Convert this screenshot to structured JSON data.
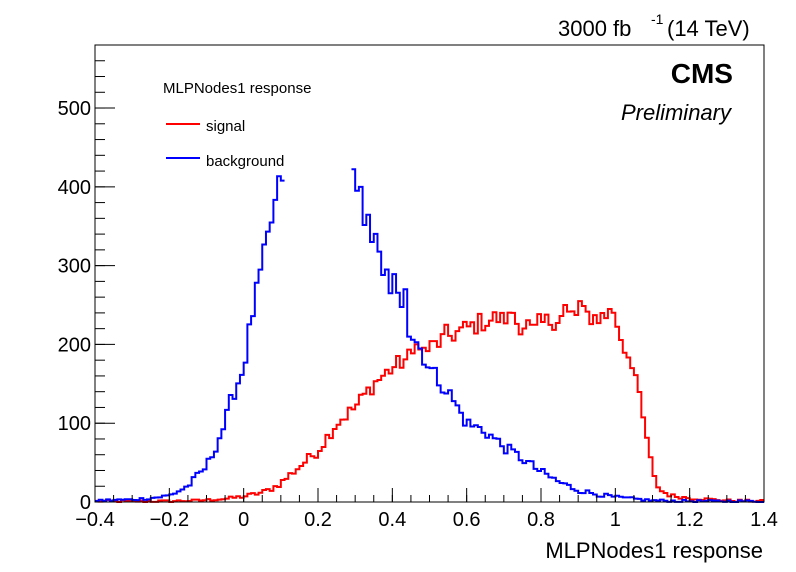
{
  "header": {
    "lumi_label": "3000 fb",
    "lumi_exponent": "-1",
    "energy_label": "(14 TeV)"
  },
  "cms": {
    "label": "CMS",
    "sublabel": "Preliminary"
  },
  "chart_data": {
    "type": "line",
    "title": "",
    "xlabel": "MLPNodes1 response",
    "ylabel": "",
    "xlim": [
      -0.4,
      1.4
    ],
    "ylim": [
      0,
      580
    ],
    "xticks": [
      -0.4,
      -0.2,
      0,
      0.2,
      0.4,
      0.6,
      0.8,
      1,
      1.2,
      1.4
    ],
    "xtick_labels": [
      "−0.4",
      "−0.2",
      "0",
      "0.2",
      "0.4",
      "0.6",
      "0.8",
      "1",
      "1.2",
      "1.4"
    ],
    "yticks": [
      0,
      100,
      200,
      300,
      400,
      500
    ],
    "ytick_labels": [
      "0",
      "100",
      "200",
      "300",
      "400",
      "500"
    ],
    "legend_title": "MLPNodes1 response",
    "legend_position": "top-left",
    "bin_edges_range": [
      -0.4,
      1.4
    ],
    "bin_count": 180,
    "series": [
      {
        "name": "signal",
        "color": "#ff0000",
        "style": "step",
        "points": [
          [
            -0.4,
            1
          ],
          [
            -0.2,
            1
          ],
          [
            -0.12,
            2
          ],
          [
            -0.05,
            4
          ],
          [
            0.0,
            7
          ],
          [
            0.05,
            12
          ],
          [
            0.08,
            18
          ],
          [
            0.1,
            24
          ],
          [
            0.15,
            45
          ],
          [
            0.2,
            65
          ],
          [
            0.25,
            100
          ],
          [
            0.3,
            120
          ],
          [
            0.35,
            150
          ],
          [
            0.4,
            170
          ],
          [
            0.45,
            185
          ],
          [
            0.5,
            195
          ],
          [
            0.55,
            210
          ],
          [
            0.6,
            220
          ],
          [
            0.65,
            230
          ],
          [
            0.7,
            235
          ],
          [
            0.75,
            225
          ],
          [
            0.8,
            225
          ],
          [
            0.85,
            235
          ],
          [
            0.9,
            238
          ],
          [
            0.95,
            235
          ],
          [
            1.0,
            235
          ],
          [
            1.02,
            200
          ],
          [
            1.05,
            175
          ],
          [
            1.07,
            115
          ],
          [
            1.09,
            70
          ],
          [
            1.1,
            35
          ],
          [
            1.12,
            15
          ],
          [
            1.15,
            8
          ],
          [
            1.2,
            5
          ],
          [
            1.3,
            2
          ],
          [
            1.4,
            1
          ]
        ],
        "spikes": [
          [
            0.465,
            200
          ],
          [
            0.545,
            225
          ],
          [
            0.695,
            240
          ],
          [
            0.725,
            240
          ],
          [
            0.78,
            225
          ],
          [
            0.865,
            250
          ],
          [
            0.905,
            255
          ],
          [
            0.985,
            245
          ]
        ]
      },
      {
        "name": "background",
        "color": "#0000ff",
        "style": "step",
        "points": [
          [
            -0.4,
            2
          ],
          [
            -0.3,
            3
          ],
          [
            -0.25,
            5
          ],
          [
            -0.2,
            8
          ],
          [
            -0.15,
            20
          ],
          [
            -0.12,
            35
          ],
          [
            -0.1,
            45
          ],
          [
            -0.08,
            65
          ],
          [
            -0.05,
            100
          ],
          [
            -0.03,
            135
          ],
          [
            0.0,
            170
          ],
          [
            0.02,
            230
          ],
          [
            0.05,
            300
          ],
          [
            0.07,
            345
          ],
          [
            0.1,
            410
          ],
          [
            0.105,
            415
          ],
          [
            0.28,
            445
          ],
          [
            0.3,
            395
          ],
          [
            0.32,
            360
          ],
          [
            0.35,
            345
          ],
          [
            0.37,
            300
          ],
          [
            0.4,
            285
          ],
          [
            0.42,
            270
          ],
          [
            0.44,
            220
          ],
          [
            0.47,
            200
          ],
          [
            0.5,
            170
          ],
          [
            0.55,
            140
          ],
          [
            0.6,
            100
          ],
          [
            0.65,
            90
          ],
          [
            0.7,
            70
          ],
          [
            0.75,
            55
          ],
          [
            0.8,
            38
          ],
          [
            0.85,
            25
          ],
          [
            0.9,
            15
          ],
          [
            0.95,
            10
          ],
          [
            1.0,
            6
          ],
          [
            1.05,
            4
          ],
          [
            1.1,
            2
          ],
          [
            1.2,
            1
          ],
          [
            1.4,
            1
          ]
        ],
        "spikes": [
          [
            0.305,
            395
          ],
          [
            0.315,
            400
          ],
          [
            0.345,
            330
          ],
          [
            0.385,
            295
          ],
          [
            0.395,
            265
          ],
          [
            0.435,
            270
          ]
        ],
        "gap": [
          0.105,
          0.285
        ]
      }
    ]
  }
}
